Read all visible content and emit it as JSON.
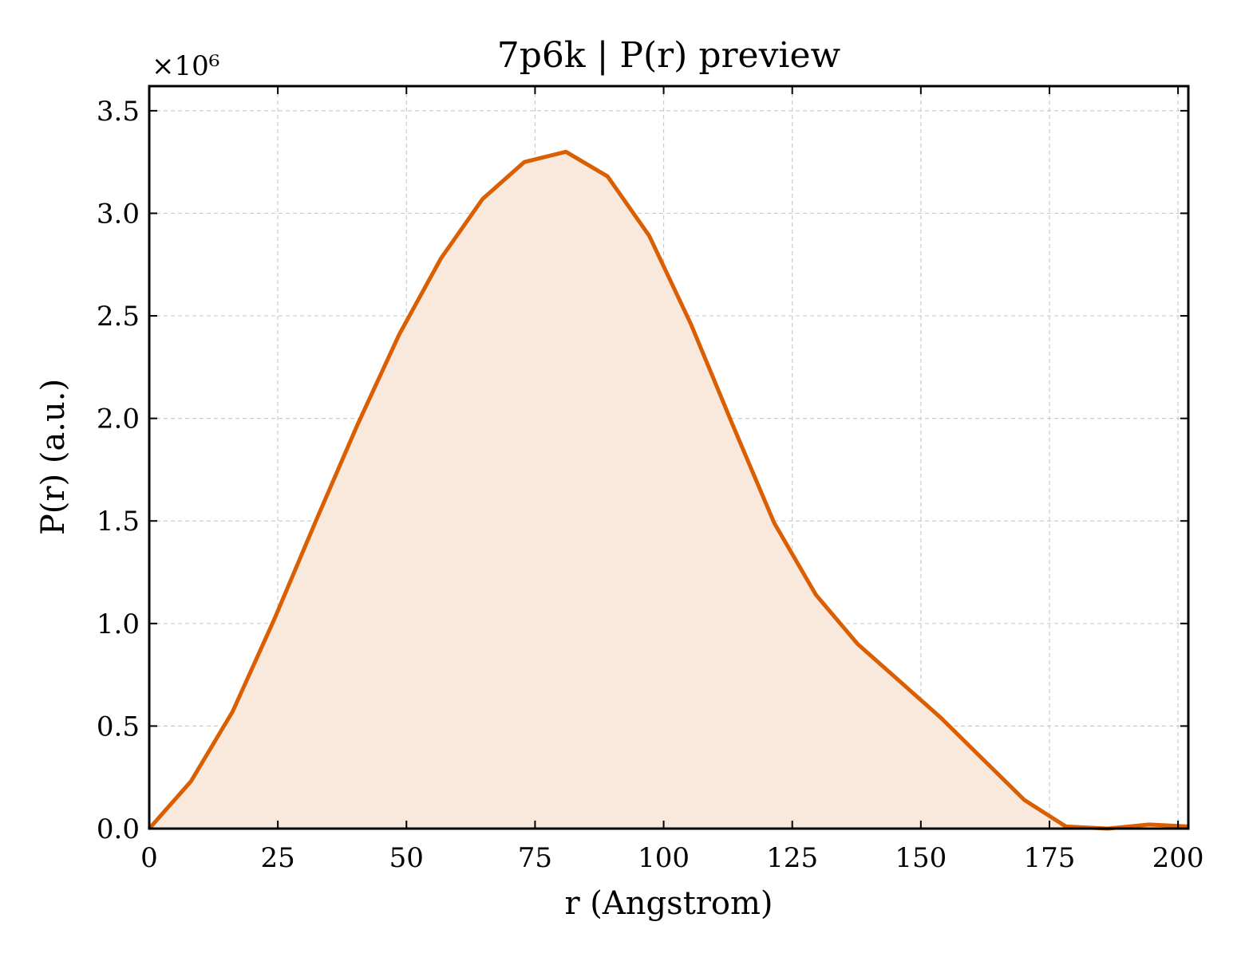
{
  "chart_data": {
    "type": "area",
    "title": "7p6k | P(r) preview",
    "xlabel": "r (Angstrom)",
    "ylabel": "P(r) (a.u.)",
    "y_multiplier": "×10⁶",
    "xlim": [
      0,
      202
    ],
    "ylim": [
      0,
      3.62
    ],
    "x_ticks": [
      0,
      25,
      50,
      75,
      100,
      125,
      150,
      175,
      200
    ],
    "x_tick_labels": [
      "0",
      "25",
      "50",
      "75",
      "100",
      "125",
      "150",
      "175",
      "200"
    ],
    "y_ticks": [
      0,
      0.5,
      1.0,
      1.5,
      2.0,
      2.5,
      3.0,
      3.5
    ],
    "y_tick_labels": [
      "0.0",
      "0.5",
      "1.0",
      "1.5",
      "2.0",
      "2.5",
      "3.0",
      "3.5"
    ],
    "grid": true,
    "line_color": "#d95f02",
    "fill_color": "#f9e9dd",
    "series": [
      {
        "x": [
          0,
          8.1,
          16.2,
          24.3,
          32.4,
          40.5,
          48.6,
          56.7,
          64.8,
          72.9,
          81.0,
          89.1,
          97.2,
          105.3,
          113.4,
          121.5,
          129.6,
          137.7,
          145.8,
          153.9,
          162.0,
          170.1,
          178.2,
          186.3,
          194.4,
          202.0
        ],
        "y": [
          0.0,
          0.23,
          0.57,
          1.02,
          1.5,
          1.97,
          2.41,
          2.78,
          3.07,
          3.25,
          3.3,
          3.18,
          2.89,
          2.46,
          1.97,
          1.49,
          1.14,
          0.9,
          0.72,
          0.54,
          0.34,
          0.14,
          0.01,
          -0.01,
          0.02,
          0.01
        ]
      }
    ]
  }
}
